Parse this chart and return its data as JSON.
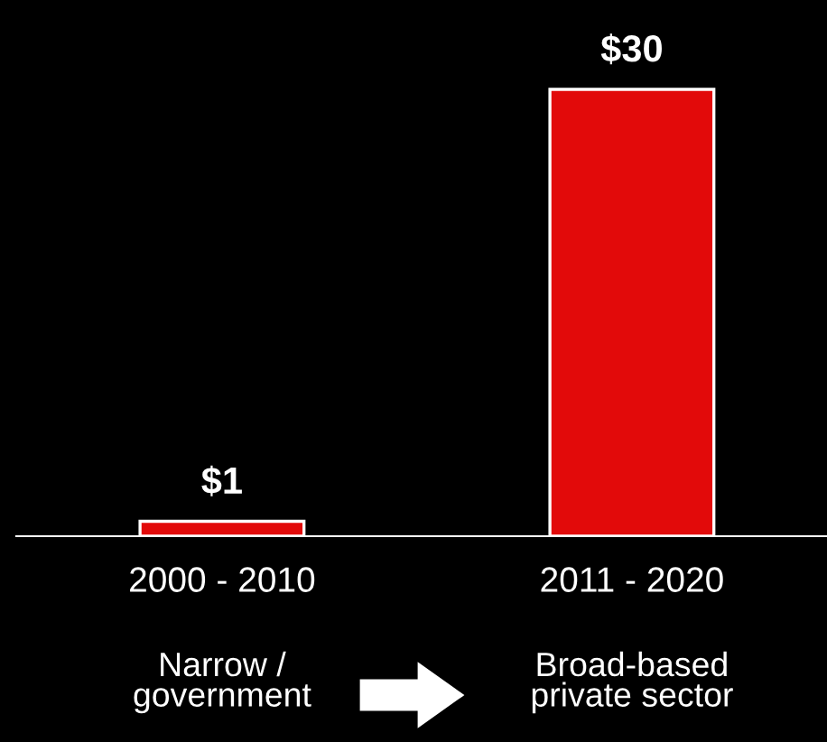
{
  "chart_data": {
    "type": "bar",
    "categories": [
      "2000 - 2010",
      "2011 - 2020"
    ],
    "values": [
      1,
      30
    ],
    "value_labels": [
      "$1",
      "$30"
    ],
    "color": "#e20a0a",
    "grid": false,
    "legend": false,
    "annotations": [
      "Narrow /\ngovernment",
      "Broad-based\nprivate sector"
    ]
  }
}
